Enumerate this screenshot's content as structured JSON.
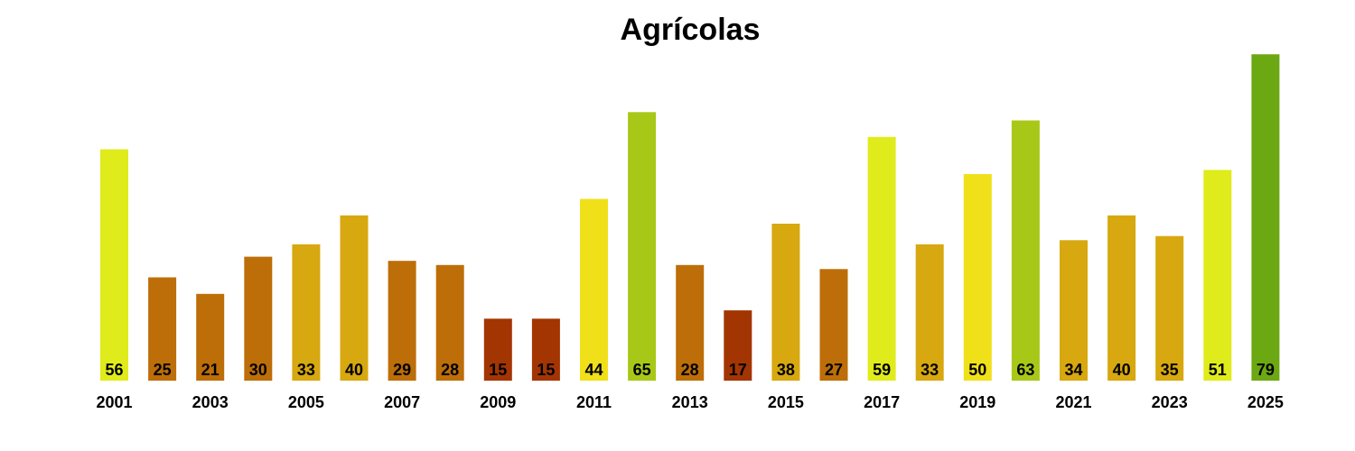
{
  "chart_data": {
    "type": "bar",
    "title": "Agrícolas",
    "xlabel": "",
    "ylabel": "",
    "categories": [
      "2001",
      "2002",
      "2003",
      "2004",
      "2005",
      "2006",
      "2007",
      "2008",
      "2009",
      "2010",
      "2011",
      "2012",
      "2013",
      "2014",
      "2015",
      "2016",
      "2017",
      "2018",
      "2019",
      "2020",
      "2021",
      "2022",
      "2023",
      "2024",
      "2025"
    ],
    "values": [
      56,
      25,
      21,
      30,
      33,
      40,
      29,
      28,
      15,
      15,
      44,
      65,
      28,
      17,
      38,
      27,
      59,
      33,
      50,
      63,
      34,
      40,
      35,
      51,
      79
    ],
    "tick_labels": [
      "2001",
      "2003",
      "2005",
      "2007",
      "2009",
      "2011",
      "2013",
      "2015",
      "2017",
      "2019",
      "2021",
      "2023",
      "2025"
    ],
    "colors": [
      "#e0eb1c",
      "#bd6e08",
      "#bd6e08",
      "#bd6e08",
      "#d7a80f",
      "#d7a80f",
      "#bd6e08",
      "#bd6e08",
      "#a33502",
      "#a33502",
      "#f0e01a",
      "#a8c818",
      "#bd6e08",
      "#a33502",
      "#d7a80f",
      "#bd6e08",
      "#e0eb1c",
      "#d7a80f",
      "#f0e01a",
      "#a8c818",
      "#d7a80f",
      "#d7a80f",
      "#d7a80f",
      "#e0eb1c",
      "#6ca812"
    ],
    "ylim": [
      0,
      80
    ],
    "grid": false,
    "legend": "none"
  }
}
